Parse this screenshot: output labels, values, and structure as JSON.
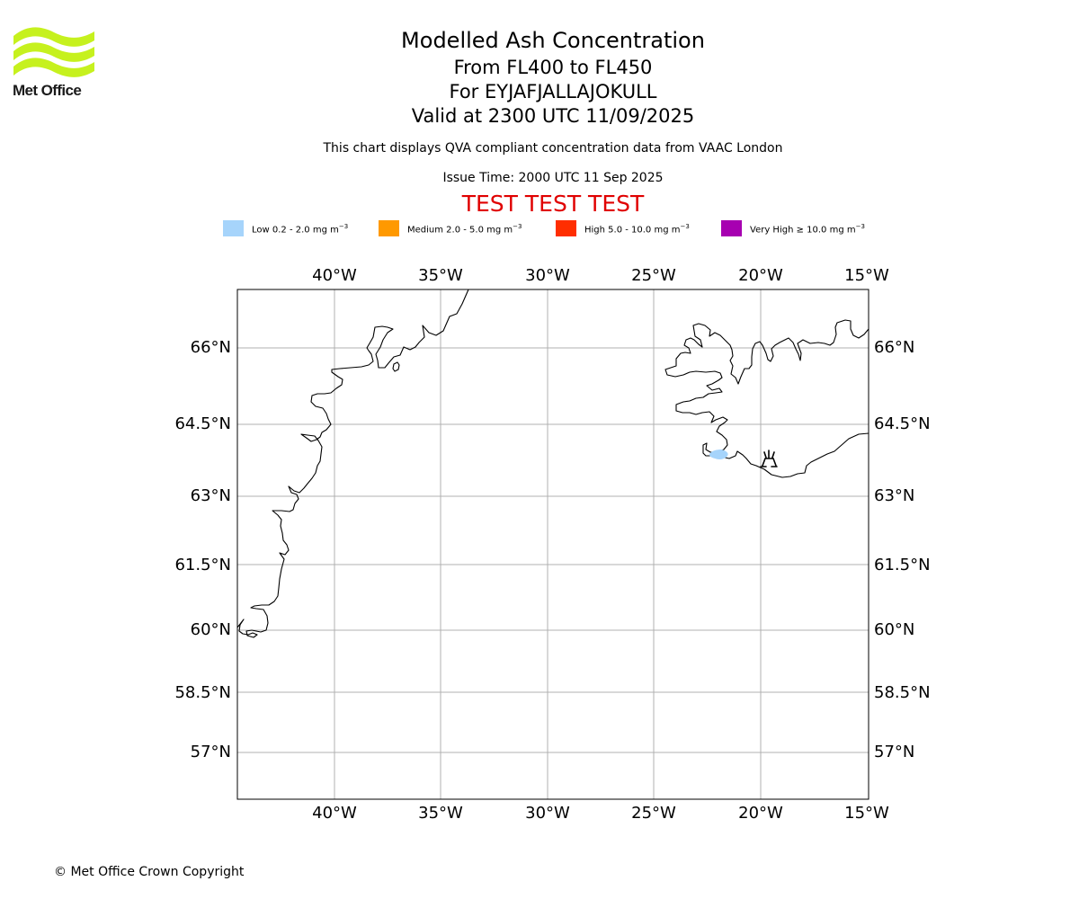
{
  "logo": {
    "brand": "Met Office",
    "color": "#c6f11e"
  },
  "title": {
    "line1": "Modelled Ash Concentration",
    "line2": "From FL400 to FL450",
    "line3": "For EYJAFJALLAJOKULL",
    "line4": "Valid at 2300 UTC 11/09/2025"
  },
  "description": "This chart displays QVA compliant concentration data from VAAC London",
  "issue_time": "Issue Time: 2000 UTC 11 Sep 2025",
  "test_banner": "TEST TEST TEST",
  "legend": [
    {
      "label": "Low 0.2 - 2.0 mg m",
      "exp": "−3",
      "color": "#a6d4fb"
    },
    {
      "label": "Medium 2.0 - 5.0 mg m",
      "exp": "−3",
      "color": "#ff9900"
    },
    {
      "label": "High 5.0 - 10.0 mg m",
      "exp": "−3",
      "color": "#ff2e00"
    },
    {
      "label": "Very High  ≥  10.0 mg m",
      "exp": "−3",
      "color": "#a700b1"
    }
  ],
  "map": {
    "lon_ticks": [
      "40°W",
      "35°W",
      "30°W",
      "25°W",
      "20°W",
      "15°W"
    ],
    "lat_ticks": [
      "66°N",
      "64.5°N",
      "63°N",
      "61.5°N",
      "60°N",
      "58.5°N",
      "57°N"
    ],
    "volcano_icon": "volcano-icon",
    "ash_region": {
      "level": "Low",
      "color": "#a6d4fb"
    }
  },
  "copyright": "© Met Office Crown Copyright"
}
